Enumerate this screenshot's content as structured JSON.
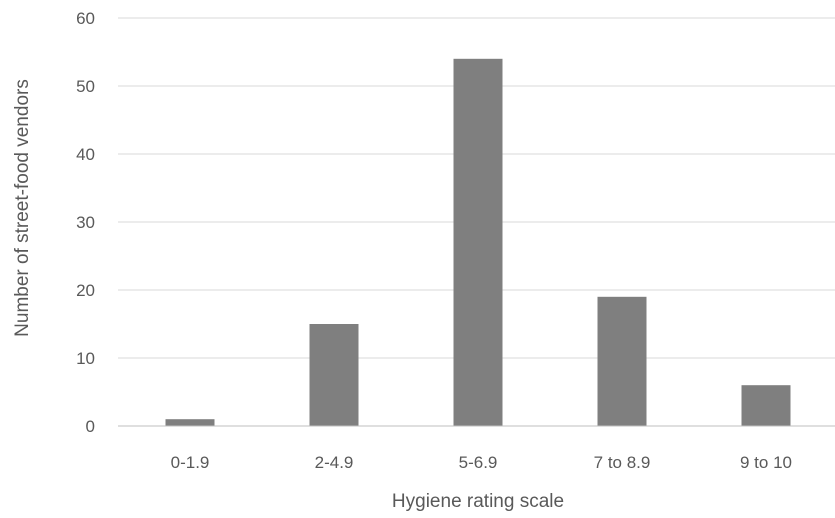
{
  "chart_data": {
    "type": "bar",
    "title": "",
    "xlabel": "Hygiene rating scale",
    "ylabel": "Number of street-food vendors",
    "categories": [
      "0-1.9",
      "2-4.9",
      "5-6.9",
      "7 to 8.9",
      "9 to 10"
    ],
    "values": [
      1,
      15,
      54,
      19,
      6
    ],
    "ylim": [
      0,
      60
    ],
    "yticks": [
      0,
      10,
      20,
      30,
      40,
      50,
      60
    ],
    "grid": "horizontal",
    "legend": "none",
    "bar_color": "#7f7f7f",
    "grid_color": "#d9d9d9",
    "text_color": "#595959"
  }
}
